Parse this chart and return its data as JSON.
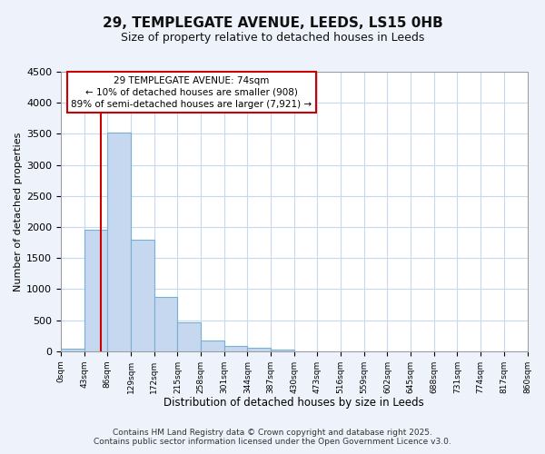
{
  "title": "29, TEMPLEGATE AVENUE, LEEDS, LS15 0HB",
  "subtitle": "Size of property relative to detached houses in Leeds",
  "xlabel": "Distribution of detached houses by size in Leeds",
  "ylabel": "Number of detached properties",
  "bar_values": [
    40,
    1950,
    3520,
    1800,
    870,
    460,
    175,
    90,
    55,
    20,
    0,
    0,
    0,
    0,
    0,
    0,
    0,
    0,
    0,
    0
  ],
  "bar_labels": [
    "0sqm",
    "43sqm",
    "86sqm",
    "129sqm",
    "172sqm",
    "215sqm",
    "258sqm",
    "301sqm",
    "344sqm",
    "387sqm",
    "430sqm",
    "473sqm",
    "516sqm",
    "559sqm",
    "602sqm",
    "645sqm",
    "688sqm",
    "731sqm",
    "774sqm",
    "817sqm",
    "860sqm"
  ],
  "bar_color": "#c5d8f0",
  "bar_edge_color": "#7aafd4",
  "vline_color": "#cc0000",
  "annotation_text_line1": "29 TEMPLEGATE AVENUE: 74sqm",
  "annotation_text_line2": "← 10% of detached houses are smaller (908)",
  "annotation_text_line3": "89% of semi-detached houses are larger (7,921) →",
  "ylim": [
    0,
    4500
  ],
  "yticks": [
    0,
    500,
    1000,
    1500,
    2000,
    2500,
    3000,
    3500,
    4000,
    4500
  ],
  "footer_line1": "Contains HM Land Registry data © Crown copyright and database right 2025.",
  "footer_line2": "Contains public sector information licensed under the Open Government Licence v3.0.",
  "bg_color": "#eef2fb",
  "plot_bg_color": "#ffffff",
  "grid_color": "#c8d8ee"
}
